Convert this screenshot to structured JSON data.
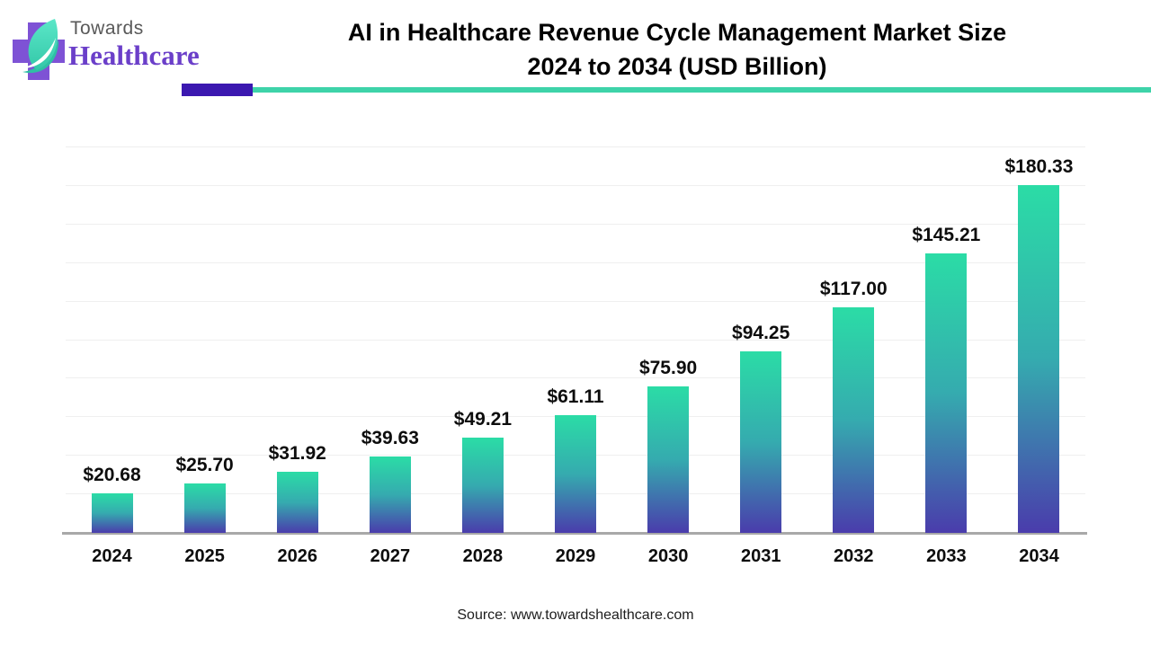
{
  "logo": {
    "brand_top": "Towards",
    "brand_bottom": "Healthcare",
    "icon": "cross-and-leaf-icon",
    "cross_color": "#7E52D5",
    "leaf_color_light": "#53E2C3",
    "leaf_color_dark": "#2FBFA4"
  },
  "title": {
    "line1": "AI in Healthcare Revenue Cycle Management Market Size",
    "line2": "2024 to 2034 (USD Billion)"
  },
  "header_divider": {
    "purple_color": "#3B18B0",
    "teal_color": "#3ED3A9"
  },
  "source": {
    "text": "Source: www.towardshealthcare.com"
  },
  "chart_data": {
    "type": "bar",
    "title": "AI in Healthcare Revenue Cycle Management Market Size 2024 to 2034 (USD Billion)",
    "categories": [
      "2024",
      "2025",
      "2026",
      "2027",
      "2028",
      "2029",
      "2030",
      "2031",
      "2032",
      "2033",
      "2034"
    ],
    "values": [
      20.68,
      25.7,
      31.92,
      39.63,
      49.21,
      61.11,
      75.9,
      94.25,
      117.0,
      145.21,
      180.33
    ],
    "value_labels": [
      "$20.68",
      "$25.70",
      "$31.92",
      "$39.63",
      "$49.21",
      "$61.11",
      "$75.90",
      "$94.25",
      "$117.00",
      "$145.21",
      "$180.33"
    ],
    "xlabel": "",
    "ylabel": "",
    "ylim": [
      0,
      200
    ],
    "grid_step": 20,
    "grid": true,
    "legend": false,
    "y_axis_labels_shown": false,
    "bar_gradient": [
      "#2BDCA6",
      "#35ABAF",
      "#4A3CAC"
    ],
    "axis_line_color": "#a8a8a8",
    "gridline_color": "#efefef"
  }
}
